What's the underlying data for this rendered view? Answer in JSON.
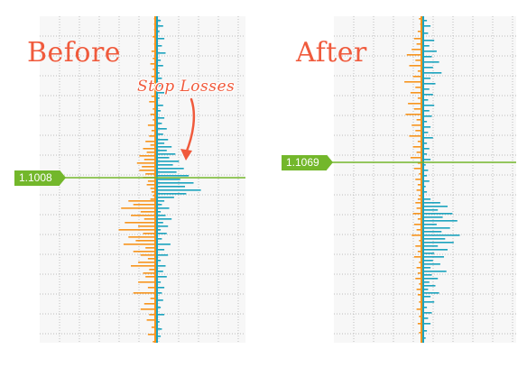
{
  "colors": {
    "orange": "#F7941D",
    "teal": "#1BA3BE",
    "title": "#F05A3C",
    "green": "#73B72B",
    "grid": "#BEBEBE",
    "arrow": "#F05A3C"
  },
  "annotation": {
    "text": "Stop Losses",
    "icon": "curved-arrow-down-icon"
  },
  "chart_data": [
    {
      "type": "bar",
      "title": "Before",
      "orientation": "horizontal",
      "current_price": "1.1008",
      "series": [
        {
          "color": "orange",
          "side": "left",
          "rows": [
            {
              "y": 1,
              "v": 1
            },
            {
              "y": 4,
              "v": 1
            },
            {
              "y": 7,
              "v": 1
            },
            {
              "y": 11,
              "v": 2
            },
            {
              "y": 15,
              "v": 1
            },
            {
              "y": 19,
              "v": 3
            },
            {
              "y": 23,
              "v": 2
            },
            {
              "y": 26,
              "v": 4
            },
            {
              "y": 29,
              "v": 2
            },
            {
              "y": 33,
              "v": 3
            },
            {
              "y": 36,
              "v": 1
            },
            {
              "y": 40,
              "v": 2
            },
            {
              "y": 44,
              "v": 3
            },
            {
              "y": 47,
              "v": 5
            },
            {
              "y": 51,
              "v": 2
            },
            {
              "y": 54,
              "v": 4
            },
            {
              "y": 57,
              "v": 2
            },
            {
              "y": 60,
              "v": 6
            },
            {
              "y": 63,
              "v": 3
            },
            {
              "y": 66,
              "v": 5
            },
            {
              "y": 69,
              "v": 8
            },
            {
              "y": 71,
              "v": 4
            },
            {
              "y": 73,
              "v": 10
            },
            {
              "y": 75,
              "v": 7
            },
            {
              "y": 77,
              "v": 13
            },
            {
              "y": 79,
              "v": 9
            },
            {
              "y": 81,
              "v": 15
            },
            {
              "y": 83,
              "v": 11
            },
            {
              "y": 85,
              "v": 13
            },
            {
              "y": 87,
              "v": 8
            },
            {
              "y": 89,
              "v": 10
            },
            {
              "y": 91,
              "v": 6
            },
            {
              "y": 93,
              "v": 7
            },
            {
              "y": 95,
              "v": 4
            },
            {
              "y": 97,
              "v": 3
            },
            {
              "y": 99,
              "v": 2
            },
            {
              "y": 101,
              "v": 4
            },
            {
              "y": 102,
              "v": 22
            },
            {
              "y": 104,
              "v": 18
            },
            {
              "y": 106,
              "v": 28
            },
            {
              "y": 108,
              "v": 12
            },
            {
              "y": 110,
              "v": 20
            },
            {
              "y": 112,
              "v": 9
            },
            {
              "y": 114,
              "v": 25
            },
            {
              "y": 116,
              "v": 14
            },
            {
              "y": 118,
              "v": 30
            },
            {
              "y": 120,
              "v": 10
            },
            {
              "y": 122,
              "v": 22
            },
            {
              "y": 124,
              "v": 16
            },
            {
              "y": 126,
              "v": 26
            },
            {
              "y": 128,
              "v": 8
            },
            {
              "y": 130,
              "v": 18
            },
            {
              "y": 132,
              "v": 12
            },
            {
              "y": 134,
              "v": 6
            },
            {
              "y": 136,
              "v": 14
            },
            {
              "y": 138,
              "v": 20
            },
            {
              "y": 140,
              "v": 5
            },
            {
              "y": 142,
              "v": 10
            },
            {
              "y": 144,
              "v": 8
            },
            {
              "y": 147,
              "v": 14
            },
            {
              "y": 150,
              "v": 6
            },
            {
              "y": 153,
              "v": 18
            },
            {
              "y": 156,
              "v": 4
            },
            {
              "y": 159,
              "v": 9
            },
            {
              "y": 162,
              "v": 12
            },
            {
              "y": 165,
              "v": 5
            },
            {
              "y": 168,
              "v": 7
            },
            {
              "y": 172,
              "v": 3
            },
            {
              "y": 176,
              "v": 6
            },
            {
              "y": 180,
              "v": 2
            }
          ]
        },
        {
          "color": "teal",
          "side": "right",
          "rows": [
            {
              "y": 2,
              "v": 3
            },
            {
              "y": 5,
              "v": 5
            },
            {
              "y": 8,
              "v": 2
            },
            {
              "y": 12,
              "v": 6
            },
            {
              "y": 16,
              "v": 4
            },
            {
              "y": 20,
              "v": 7
            },
            {
              "y": 24,
              "v": 3
            },
            {
              "y": 27,
              "v": 5
            },
            {
              "y": 31,
              "v": 2
            },
            {
              "y": 34,
              "v": 4
            },
            {
              "y": 38,
              "v": 3
            },
            {
              "y": 42,
              "v": 6
            },
            {
              "y": 45,
              "v": 2
            },
            {
              "y": 49,
              "v": 5
            },
            {
              "y": 52,
              "v": 3
            },
            {
              "y": 56,
              "v": 6
            },
            {
              "y": 59,
              "v": 4
            },
            {
              "y": 62,
              "v": 8
            },
            {
              "y": 65,
              "v": 5
            },
            {
              "y": 68,
              "v": 9
            },
            {
              "y": 70,
              "v": 6
            },
            {
              "y": 72,
              "v": 12
            },
            {
              "y": 74,
              "v": 8
            },
            {
              "y": 76,
              "v": 15
            },
            {
              "y": 78,
              "v": 10
            },
            {
              "y": 80,
              "v": 18
            },
            {
              "y": 82,
              "v": 13
            },
            {
              "y": 84,
              "v": 22
            },
            {
              "y": 86,
              "v": 16
            },
            {
              "y": 88,
              "v": 26
            },
            {
              "y": 90,
              "v": 19
            },
            {
              "y": 92,
              "v": 30
            },
            {
              "y": 94,
              "v": 23
            },
            {
              "y": 96,
              "v": 36
            },
            {
              "y": 98,
              "v": 24
            },
            {
              "y": 100,
              "v": 14
            },
            {
              "y": 102,
              "v": 6
            },
            {
              "y": 104,
              "v": 4
            },
            {
              "y": 106,
              "v": 10
            },
            {
              "y": 108,
              "v": 3
            },
            {
              "y": 110,
              "v": 7
            },
            {
              "y": 112,
              "v": 12
            },
            {
              "y": 114,
              "v": 5
            },
            {
              "y": 116,
              "v": 9
            },
            {
              "y": 118,
              "v": 3
            },
            {
              "y": 120,
              "v": 8
            },
            {
              "y": 123,
              "v": 4
            },
            {
              "y": 126,
              "v": 11
            },
            {
              "y": 129,
              "v": 6
            },
            {
              "y": 132,
              "v": 9
            },
            {
              "y": 135,
              "v": 3
            },
            {
              "y": 138,
              "v": 7
            },
            {
              "y": 141,
              "v": 5
            },
            {
              "y": 144,
              "v": 8
            },
            {
              "y": 147,
              "v": 3
            },
            {
              "y": 150,
              "v": 6
            },
            {
              "y": 153,
              "v": 4
            },
            {
              "y": 157,
              "v": 5
            },
            {
              "y": 161,
              "v": 3
            },
            {
              "y": 165,
              "v": 6
            },
            {
              "y": 169,
              "v": 2
            },
            {
              "y": 173,
              "v": 4
            },
            {
              "y": 177,
              "v": 3
            }
          ]
        }
      ]
    },
    {
      "type": "bar",
      "title": "After",
      "orientation": "horizontal",
      "current_price": "1.1069",
      "series": [
        {
          "color": "orange",
          "side": "left",
          "rows": [
            {
              "y": 1,
              "v": 2
            },
            {
              "y": 4,
              "v": 1
            },
            {
              "y": 8,
              "v": 3
            },
            {
              "y": 12,
              "v": 6
            },
            {
              "y": 15,
              "v": 4
            },
            {
              "y": 18,
              "v": 8
            },
            {
              "y": 21,
              "v": 12
            },
            {
              "y": 24,
              "v": 5
            },
            {
              "y": 27,
              "v": 10
            },
            {
              "y": 30,
              "v": 3
            },
            {
              "y": 33,
              "v": 7
            },
            {
              "y": 36,
              "v": 14
            },
            {
              "y": 39,
              "v": 5
            },
            {
              "y": 42,
              "v": 9
            },
            {
              "y": 45,
              "v": 3
            },
            {
              "y": 48,
              "v": 11
            },
            {
              "y": 51,
              "v": 6
            },
            {
              "y": 54,
              "v": 13
            },
            {
              "y": 57,
              "v": 4
            },
            {
              "y": 60,
              "v": 8
            },
            {
              "y": 63,
              "v": 5
            },
            {
              "y": 66,
              "v": 10
            },
            {
              "y": 69,
              "v": 3
            },
            {
              "y": 72,
              "v": 7
            },
            {
              "y": 75,
              "v": 4
            },
            {
              "y": 78,
              "v": 9
            },
            {
              "y": 81,
              "v": 3
            },
            {
              "y": 84,
              "v": 6
            },
            {
              "y": 87,
              "v": 2
            },
            {
              "y": 90,
              "v": 5
            },
            {
              "y": 93,
              "v": 3
            },
            {
              "y": 96,
              "v": 4
            },
            {
              "y": 99,
              "v": 2
            },
            {
              "y": 101,
              "v": 3
            },
            {
              "y": 103,
              "v": 5
            },
            {
              "y": 106,
              "v": 4
            },
            {
              "y": 109,
              "v": 7
            },
            {
              "y": 112,
              "v": 3
            },
            {
              "y": 115,
              "v": 6
            },
            {
              "y": 118,
              "v": 4
            },
            {
              "y": 121,
              "v": 8
            },
            {
              "y": 124,
              "v": 2
            },
            {
              "y": 127,
              "v": 5
            },
            {
              "y": 130,
              "v": 3
            },
            {
              "y": 133,
              "v": 6
            },
            {
              "y": 136,
              "v": 2
            },
            {
              "y": 139,
              "v": 4
            },
            {
              "y": 142,
              "v": 3
            },
            {
              "y": 145,
              "v": 5
            },
            {
              "y": 148,
              "v": 2
            },
            {
              "y": 151,
              "v": 4
            },
            {
              "y": 154,
              "v": 3
            },
            {
              "y": 158,
              "v": 2
            },
            {
              "y": 162,
              "v": 4
            },
            {
              "y": 166,
              "v": 2
            },
            {
              "y": 170,
              "v": 3
            },
            {
              "y": 175,
              "v": 2
            }
          ]
        },
        {
          "color": "teal",
          "side": "right",
          "rows": [
            {
              "y": 2,
              "v": 3
            },
            {
              "y": 5,
              "v": 6
            },
            {
              "y": 9,
              "v": 4
            },
            {
              "y": 13,
              "v": 9
            },
            {
              "y": 16,
              "v": 5
            },
            {
              "y": 19,
              "v": 11
            },
            {
              "y": 22,
              "v": 7
            },
            {
              "y": 25,
              "v": 13
            },
            {
              "y": 28,
              "v": 8
            },
            {
              "y": 31,
              "v": 15
            },
            {
              "y": 34,
              "v": 6
            },
            {
              "y": 37,
              "v": 10
            },
            {
              "y": 40,
              "v": 5
            },
            {
              "y": 43,
              "v": 8
            },
            {
              "y": 46,
              "v": 4
            },
            {
              "y": 49,
              "v": 9
            },
            {
              "y": 52,
              "v": 5
            },
            {
              "y": 55,
              "v": 7
            },
            {
              "y": 58,
              "v": 3
            },
            {
              "y": 61,
              "v": 6
            },
            {
              "y": 64,
              "v": 4
            },
            {
              "y": 67,
              "v": 8
            },
            {
              "y": 70,
              "v": 3
            },
            {
              "y": 73,
              "v": 5
            },
            {
              "y": 76,
              "v": 3
            },
            {
              "y": 79,
              "v": 6
            },
            {
              "y": 82,
              "v": 2
            },
            {
              "y": 85,
              "v": 4
            },
            {
              "y": 88,
              "v": 3
            },
            {
              "y": 91,
              "v": 5
            },
            {
              "y": 94,
              "v": 2
            },
            {
              "y": 97,
              "v": 3
            },
            {
              "y": 101,
              "v": 6
            },
            {
              "y": 103,
              "v": 14
            },
            {
              "y": 105,
              "v": 20
            },
            {
              "y": 107,
              "v": 12
            },
            {
              "y": 109,
              "v": 24
            },
            {
              "y": 111,
              "v": 16
            },
            {
              "y": 113,
              "v": 28
            },
            {
              "y": 115,
              "v": 11
            },
            {
              "y": 117,
              "v": 22
            },
            {
              "y": 119,
              "v": 15
            },
            {
              "y": 121,
              "v": 30
            },
            {
              "y": 123,
              "v": 18
            },
            {
              "y": 125,
              "v": 25
            },
            {
              "y": 127,
              "v": 12
            },
            {
              "y": 129,
              "v": 20
            },
            {
              "y": 131,
              "v": 9
            },
            {
              "y": 133,
              "v": 17
            },
            {
              "y": 135,
              "v": 8
            },
            {
              "y": 137,
              "v": 14
            },
            {
              "y": 139,
              "v": 6
            },
            {
              "y": 141,
              "v": 19
            },
            {
              "y": 143,
              "v": 7
            },
            {
              "y": 145,
              "v": 12
            },
            {
              "y": 147,
              "v": 5
            },
            {
              "y": 149,
              "v": 10
            },
            {
              "y": 151,
              "v": 4
            },
            {
              "y": 153,
              "v": 13
            },
            {
              "y": 155,
              "v": 6
            },
            {
              "y": 158,
              "v": 9
            },
            {
              "y": 161,
              "v": 3
            },
            {
              "y": 164,
              "v": 7
            },
            {
              "y": 167,
              "v": 4
            },
            {
              "y": 170,
              "v": 6
            },
            {
              "y": 174,
              "v": 3
            },
            {
              "y": 178,
              "v": 2
            }
          ]
        }
      ]
    }
  ]
}
